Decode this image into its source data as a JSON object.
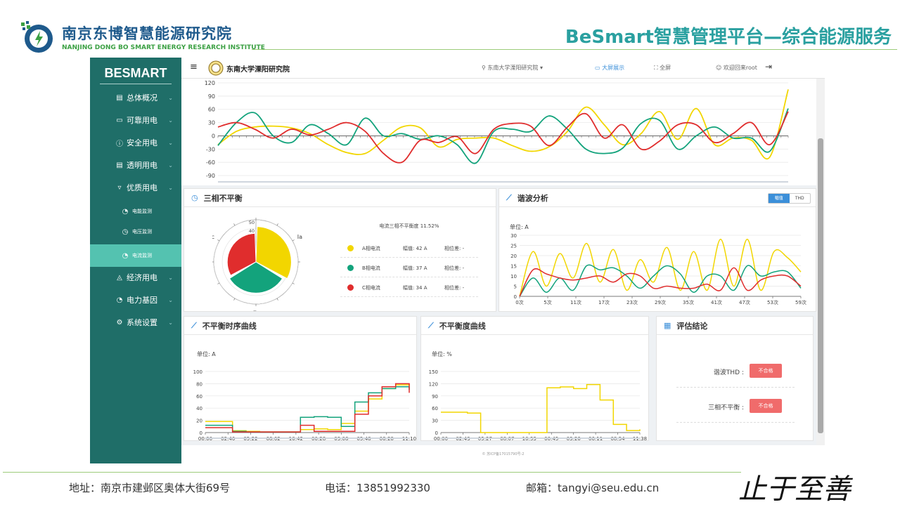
{
  "slide": {
    "org_cn": "南京东博智慧能源研究院",
    "org_en": "NANJING DONG BO SMART ENERGY RESEARCH INSTITUTE",
    "platform_title": "BeSmart智慧管理平台—综合能源服务",
    "address": "地址：南京市建邺区奥体大街69号",
    "phone": "电话：13851992330",
    "email": "邮箱：tangyi@seu.edu.cn",
    "motto": "止于至善"
  },
  "app": {
    "brand": "BESMART",
    "nav": [
      {
        "label": "总体概况",
        "icon": "calendar-icon"
      },
      {
        "label": "可靠用电",
        "icon": "monitor-icon"
      },
      {
        "label": "安全用电",
        "icon": "info-icon"
      },
      {
        "label": "透明用电",
        "icon": "document-icon"
      },
      {
        "label": "优质用电",
        "icon": "filter-icon"
      },
      {
        "label": "电能监测",
        "icon": "gauge-icon"
      },
      {
        "label": "电压监测",
        "icon": "clock-icon"
      },
      {
        "label": "电流监测",
        "icon": "gauge-icon"
      },
      {
        "label": "经济用电",
        "icon": "bell-icon"
      },
      {
        "label": "电力基因",
        "icon": "gauge-icon"
      },
      {
        "label": "系统设置",
        "icon": "gear-icon"
      }
    ],
    "topbar": {
      "university": "东南大学溧阳研究院",
      "location": "东南大学溧阳研究院",
      "bigscreen": "大屏展示",
      "fullscreen": "全屏",
      "welcome": "欢迎回来root"
    },
    "footer": "© 苏ICP备17015790号-2",
    "colors": {
      "a_phase": "#f2d600",
      "b_phase": "#13a37c",
      "c_phase": "#e02d2d",
      "sidebar": "#1f6e68",
      "accent": "#3b8fd9"
    }
  },
  "panels": {
    "imbalance": {
      "title": "三相不平衡",
      "degree_label": "电流三相不平衡度 11.52%",
      "rows": [
        {
          "name": "A相电流",
          "amp": "幅值: 42 A",
          "phase": "相位差: -"
        },
        {
          "name": "B相电流",
          "amp": "幅值: 37 A",
          "phase": "相位差: -"
        },
        {
          "name": "C相电流",
          "amp": "幅值: 34 A",
          "phase": "相位差: -"
        }
      ],
      "radial_labels": {
        "ia": "Ia",
        "ib": "Ib",
        "ic": "Ic"
      },
      "radial_ticks": [
        "50",
        "40",
        "30",
        "20",
        "10"
      ]
    },
    "harmonic": {
      "title": "谐波分析",
      "tab_amp": "幅值",
      "tab_thd": "THD",
      "unit": "单位: A"
    },
    "seq_curve": {
      "title": "不平衡时序曲线",
      "unit": "单位: A"
    },
    "degree_curve": {
      "title": "不平衡度曲线",
      "unit": "单位: %"
    },
    "conclusion": {
      "title": "评估结论",
      "items": [
        {
          "label": "谐波THD :",
          "badge": "不合格"
        },
        {
          "label": "三相不平衡 :",
          "badge": "不合格"
        }
      ]
    }
  },
  "chart_data": [
    {
      "type": "line",
      "title": "",
      "ylim": [
        -90,
        120
      ],
      "yticks": [
        120,
        90,
        60,
        30,
        0,
        -30,
        -60,
        -90
      ],
      "series": [
        {
          "color": "#f2d600",
          "values": [
            -20,
            10,
            20,
            22,
            18,
            5,
            -20,
            -38,
            -40,
            -10,
            20,
            18,
            -25,
            -8,
            -5,
            -5,
            -22,
            -35,
            -25,
            10,
            65,
            25,
            -20,
            5,
            55,
            -8,
            62,
            -20,
            -5,
            -10,
            -48,
            105
          ]
        },
        {
          "color": "#13a37c",
          "values": [
            -22,
            30,
            52,
            0,
            -15,
            25,
            5,
            -20,
            40,
            0,
            5,
            -8,
            0,
            -20,
            -62,
            10,
            15,
            10,
            45,
            15,
            -30,
            -40,
            -28,
            28,
            35,
            -30,
            0,
            20,
            -5,
            -5,
            -35,
            62
          ]
        },
        {
          "color": "#e02d2d",
          "values": [
            20,
            30,
            15,
            -5,
            15,
            2,
            15,
            30,
            10,
            -40,
            -60,
            -10,
            -15,
            -2,
            -40,
            15,
            28,
            22,
            -22,
            20,
            50,
            -5,
            25,
            -30,
            -12,
            25,
            25,
            -15,
            5,
            30,
            -20,
            55
          ]
        }
      ]
    },
    {
      "type": "bar",
      "title": "三相不平衡",
      "categories": [
        "Ia",
        "Ib",
        "Ic"
      ],
      "values": [
        42,
        37,
        34
      ],
      "ylim": [
        0,
        50
      ]
    },
    {
      "type": "line",
      "title": "谐波分析",
      "ylim": [
        0,
        30
      ],
      "yticks": [
        30,
        25,
        20,
        15,
        10,
        5,
        0
      ],
      "xticks": [
        "0次",
        "5次",
        "11次",
        "17次",
        "23次",
        "29次",
        "35次",
        "41次",
        "47次",
        "53次",
        "59次"
      ],
      "series": [
        {
          "color": "#f2d600",
          "values": [
            0,
            22,
            5,
            21,
            9,
            26,
            7,
            23,
            3,
            18,
            7,
            24,
            3,
            22,
            3,
            28,
            5,
            28,
            3,
            22,
            19,
            12
          ]
        },
        {
          "color": "#13a37c",
          "values": [
            0,
            9,
            2,
            9,
            3,
            15,
            13,
            14,
            10,
            4,
            10,
            15,
            11,
            2,
            10,
            10,
            3,
            15,
            10,
            12,
            12,
            4
          ]
        },
        {
          "color": "#e02d2d",
          "values": [
            0,
            13,
            11,
            9,
            8,
            9,
            10,
            7,
            11,
            10,
            4,
            5,
            4,
            4,
            6,
            3,
            14,
            3,
            8,
            10,
            10,
            5
          ]
        }
      ]
    },
    {
      "type": "line",
      "title": "不平衡时序曲线",
      "ylim": [
        0,
        100
      ],
      "yticks": [
        100,
        80,
        60,
        40,
        20,
        0
      ],
      "xticks": [
        "00:00",
        "02:40",
        "05:22",
        "08:02",
        "10:42",
        "00:28",
        "03:08",
        "05:48",
        "08:28",
        "11:10"
      ],
      "series": [
        {
          "color": "#f2d600",
          "values": [
            18,
            18,
            3,
            2,
            1,
            1,
            1,
            5,
            6,
            5,
            15,
            35,
            55,
            72,
            78,
            80
          ]
        },
        {
          "color": "#13a37c",
          "values": [
            12,
            12,
            2,
            1,
            1,
            1,
            1,
            25,
            26,
            25,
            10,
            50,
            65,
            72,
            75,
            70
          ]
        },
        {
          "color": "#e02d2d",
          "values": [
            8,
            8,
            1,
            1,
            1,
            1,
            1,
            12,
            2,
            2,
            2,
            30,
            60,
            75,
            80,
            65
          ]
        }
      ]
    },
    {
      "type": "line",
      "title": "不平衡度曲线",
      "ylim": [
        0,
        150
      ],
      "yticks": [
        150,
        120,
        90,
        60,
        30,
        0
      ],
      "xticks": [
        "00:00",
        "02:43",
        "05:27",
        "08:07",
        "10:53",
        "00:45",
        "03:26",
        "06:11",
        "08:54",
        "11:38"
      ],
      "series": [
        {
          "color": "#f2d600",
          "values": [
            50,
            50,
            48,
            0,
            0,
            0,
            0,
            0,
            110,
            112,
            108,
            118,
            80,
            20,
            5,
            8
          ]
        }
      ]
    }
  ]
}
